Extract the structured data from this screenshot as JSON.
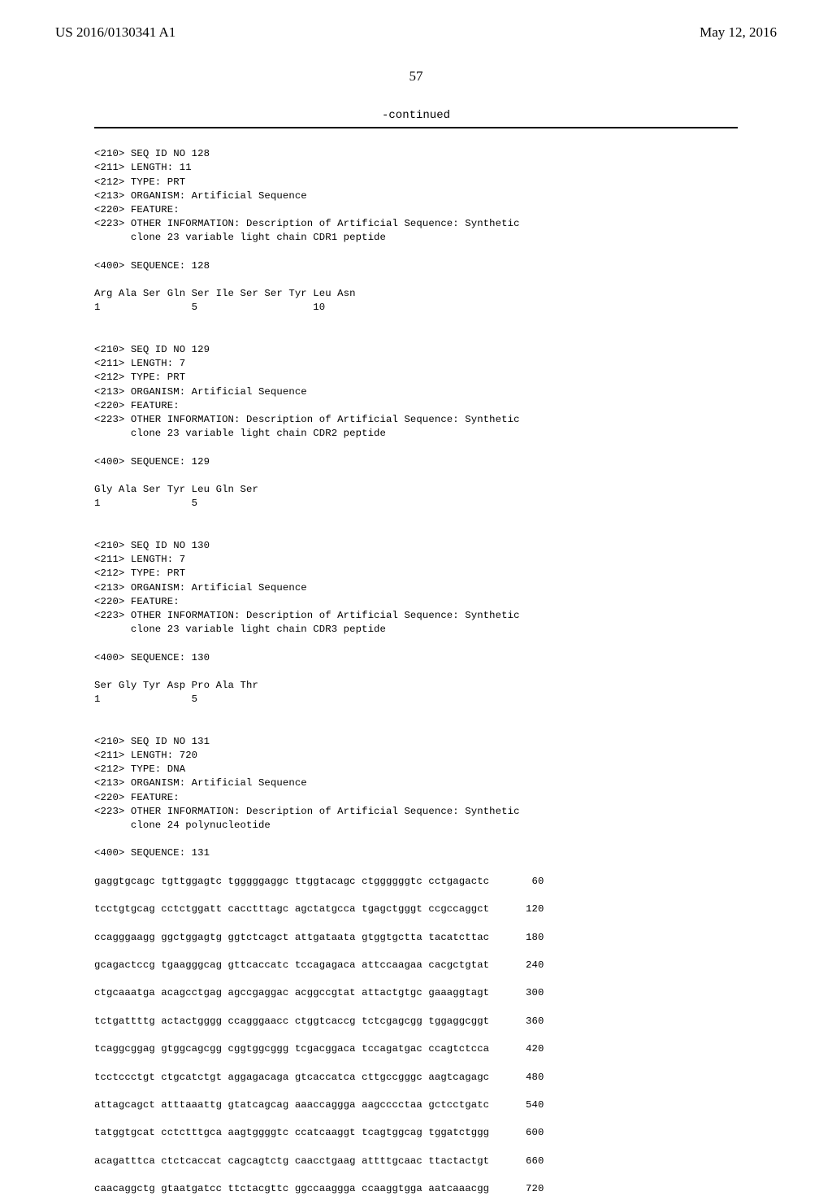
{
  "header": {
    "left": "US 2016/0130341 A1",
    "right": "May 12, 2016"
  },
  "page_number": "57",
  "continued": "-continued",
  "seq128": {
    "l1": "<210> SEQ ID NO 128",
    "l2": "<211> LENGTH: 11",
    "l3": "<212> TYPE: PRT",
    "l4": "<213> ORGANISM: Artificial Sequence",
    "l5": "<220> FEATURE:",
    "l6": "<223> OTHER INFORMATION: Description of Artificial Sequence: Synthetic",
    "l7": "      clone 23 variable light chain CDR1 peptide",
    "l8": "<400> SEQUENCE: 128",
    "l9": "Arg Ala Ser Gln Ser Ile Ser Ser Tyr Leu Asn",
    "l10": "1               5                   10"
  },
  "seq129": {
    "l1": "<210> SEQ ID NO 129",
    "l2": "<211> LENGTH: 7",
    "l3": "<212> TYPE: PRT",
    "l4": "<213> ORGANISM: Artificial Sequence",
    "l5": "<220> FEATURE:",
    "l6": "<223> OTHER INFORMATION: Description of Artificial Sequence: Synthetic",
    "l7": "      clone 23 variable light chain CDR2 peptide",
    "l8": "<400> SEQUENCE: 129",
    "l9": "Gly Ala Ser Tyr Leu Gln Ser",
    "l10": "1               5"
  },
  "seq130": {
    "l1": "<210> SEQ ID NO 130",
    "l2": "<211> LENGTH: 7",
    "l3": "<212> TYPE: PRT",
    "l4": "<213> ORGANISM: Artificial Sequence",
    "l5": "<220> FEATURE:",
    "l6": "<223> OTHER INFORMATION: Description of Artificial Sequence: Synthetic",
    "l7": "      clone 23 variable light chain CDR3 peptide",
    "l8": "<400> SEQUENCE: 130",
    "l9": "Ser Gly Tyr Asp Pro Ala Thr",
    "l10": "1               5"
  },
  "seq131": {
    "l1": "<210> SEQ ID NO 131",
    "l2": "<211> LENGTH: 720",
    "l3": "<212> TYPE: DNA",
    "l4": "<213> ORGANISM: Artificial Sequence",
    "l5": "<220> FEATURE:",
    "l6": "<223> OTHER INFORMATION: Description of Artificial Sequence: Synthetic",
    "l7": "      clone 24 polynucleotide",
    "l8": "<400> SEQUENCE: 131",
    "r1": "gaggtgcagc tgttggagtc tgggggaggc ttggtacagc ctggggggtc cctgagactc       60",
    "r2": "tcctgtgcag cctctggatt cacctttagc agctatgcca tgagctgggt ccgccaggct      120",
    "r3": "ccagggaagg ggctggagtg ggtctcagct attgataata gtggtgctta tacatcttac      180",
    "r4": "gcagactccg tgaagggcag gttcaccatc tccagagaca attccaagaa cacgctgtat      240",
    "r5": "ctgcaaatga acagcctgag agccgaggac acggccgtat attactgtgc gaaaggtagt      300",
    "r6": "tctgattttg actactgggg ccagggaacc ctggtcaccg tctcgagcgg tggaggcggt      360",
    "r7": "tcaggcggag gtggcagcgg cggtggcggg tcgacggaca tccagatgac ccagtctcca      420",
    "r8": "tcctccctgt ctgcatctgt aggagacaga gtcaccatca cttgccgggc aagtcagagc      480",
    "r9": "attagcagct atttaaattg gtatcagcag aaaccaggga aagcccctaa gctcctgatc      540",
    "r10": "tatggtgcat cctctttgca aagtggggtc ccatcaaggt tcagtggcag tggatctggg      600",
    "r11": "acagatttca ctctcaccat cagcagtctg caacctgaag attttgcaac ttactactgt      660",
    "r12": "caacaggctg gtaatgatcc ttctacgttc ggccaaggga ccaaggtgga aatcaaacgg      720"
  }
}
